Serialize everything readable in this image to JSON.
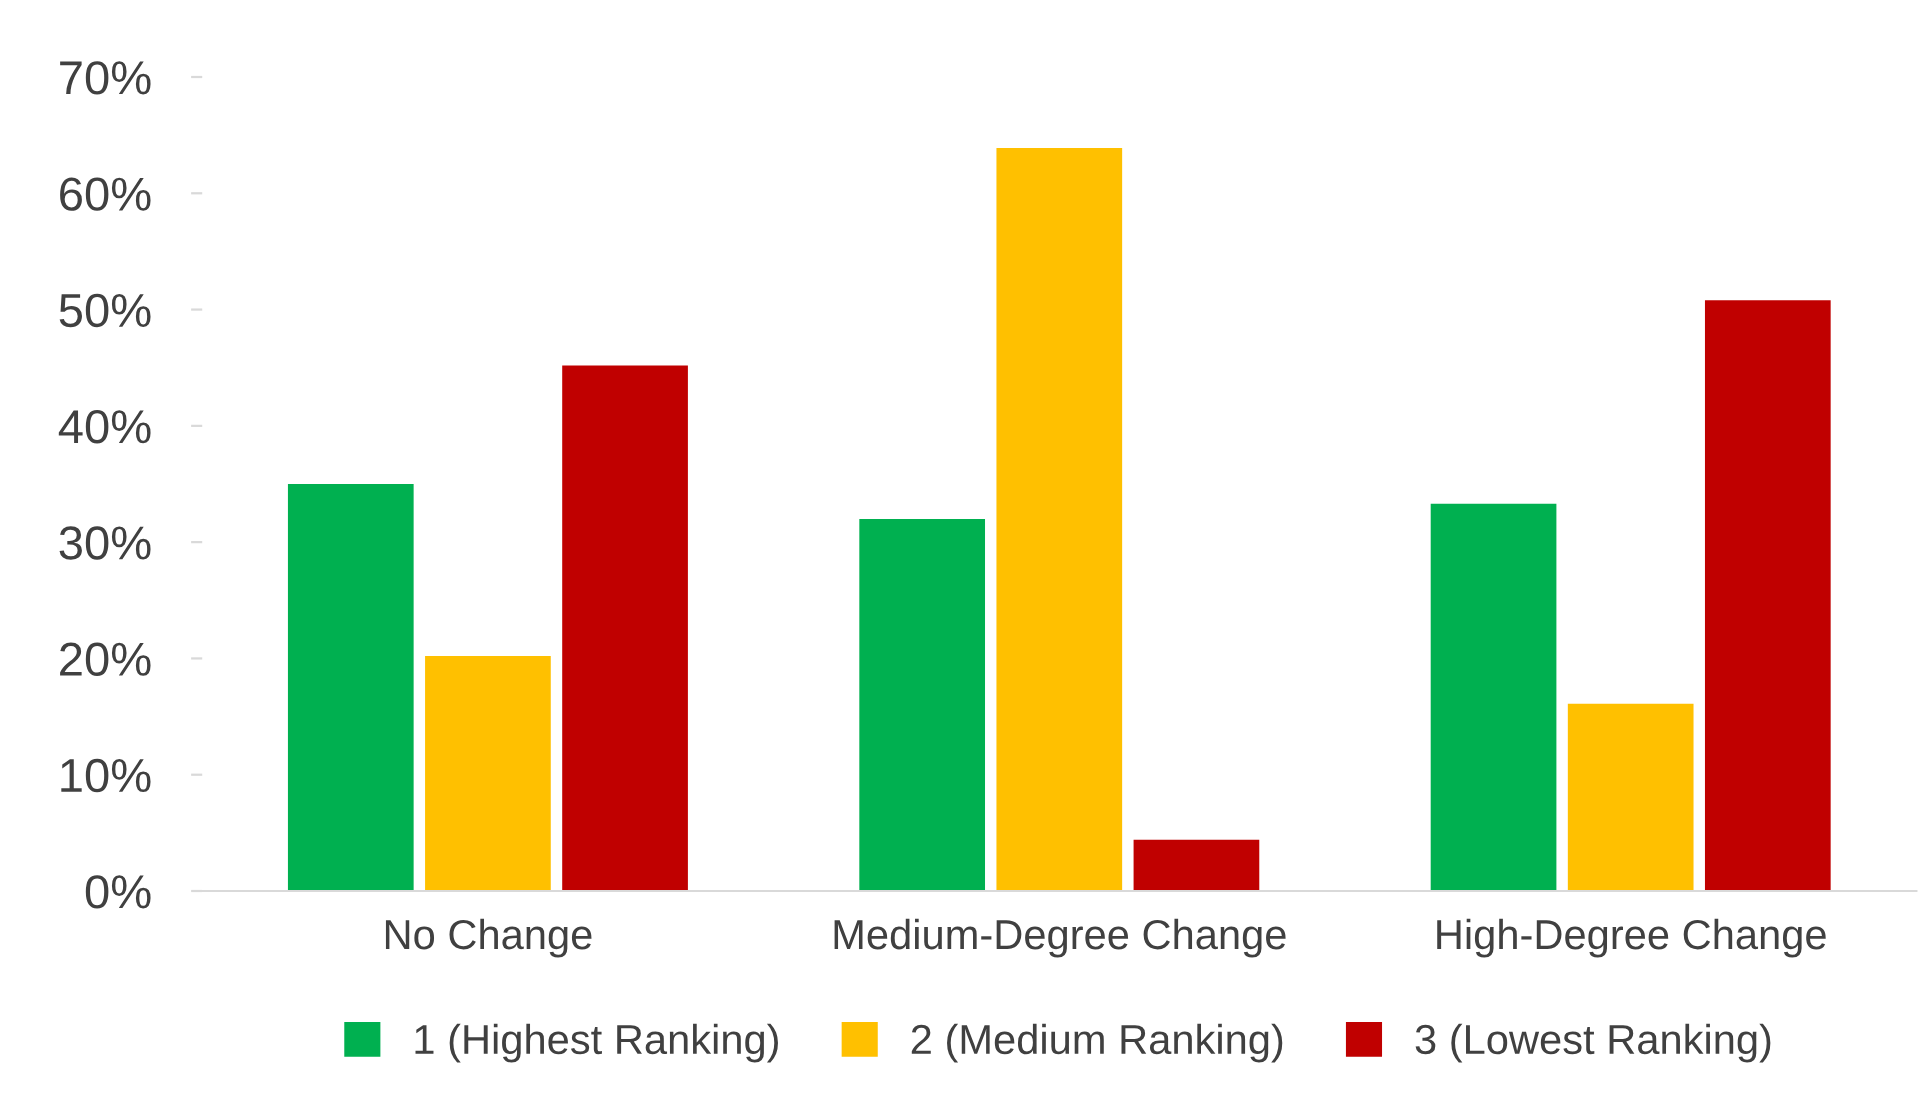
{
  "chart_data": {
    "type": "bar",
    "categories": [
      "No Change",
      "Medium-Degree Change",
      "High-Degree Change"
    ],
    "series": [
      {
        "name": "1 (Highest Ranking)",
        "color": "#00b050",
        "values": [
          35,
          32,
          33.3
        ]
      },
      {
        "name": "2 (Medium Ranking)",
        "color": "#ffc000",
        "values": [
          20.2,
          63.9,
          16.1
        ]
      },
      {
        "name": "3 (Lowest Ranking)",
        "color": "#c00000",
        "values": [
          45.2,
          4.4,
          50.8
        ]
      }
    ],
    "ylim": [
      0,
      70
    ],
    "yticks": [
      {
        "value": 0,
        "label": "0%"
      },
      {
        "value": 10,
        "label": "10%"
      },
      {
        "value": 20,
        "label": "20%"
      },
      {
        "value": 30,
        "label": "30%"
      },
      {
        "value": 40,
        "label": "40%"
      },
      {
        "value": 50,
        "label": "50%"
      },
      {
        "value": 60,
        "label": "60%"
      },
      {
        "value": 70,
        "label": "70%"
      }
    ],
    "grid": false,
    "legend": "bottom"
  }
}
